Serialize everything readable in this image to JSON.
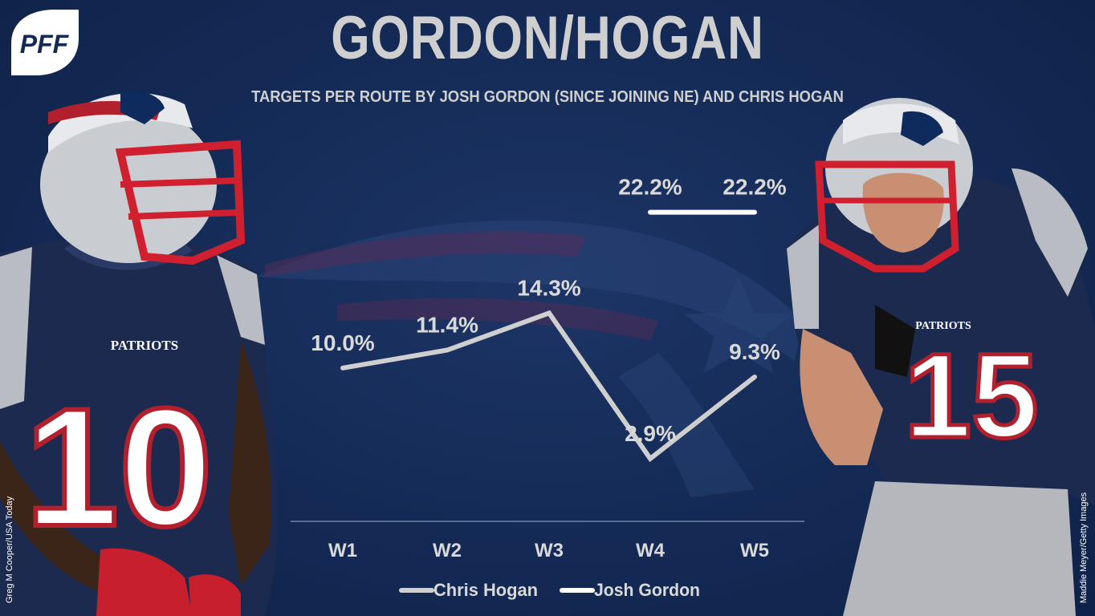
{
  "brand": {
    "logo_text": "PFF"
  },
  "title": "GORDON/HOGAN",
  "subtitle": "TARGETS PER ROUTE BY JOSH GORDON (SINCE JOINING NE) AND CHRIS HOGAN",
  "credits": {
    "left": "Greg M Cooper/USA Today",
    "right": "Maddie Meyer/Getty Images"
  },
  "players": {
    "left": {
      "jersey_number": "10",
      "team_text": "PATRIOTS"
    },
    "right": {
      "jersey_number": "15",
      "team_text": "PATRIOTS"
    }
  },
  "colors": {
    "hogan_line": "#cfcfcf",
    "gordon_line": "#ffffff",
    "background": "#142a55",
    "text": "#d9d9d9"
  },
  "chart_data": {
    "type": "line",
    "title": "GORDON/HOGAN",
    "subtitle": "TARGETS PER ROUTE BY JOSH GORDON (SINCE JOINING NE) AND CHRIS HOGAN",
    "categories": [
      "W1",
      "W2",
      "W3",
      "W4",
      "W5"
    ],
    "series": [
      {
        "name": "Chris Hogan",
        "values": [
          10.0,
          11.4,
          14.3,
          2.9,
          9.3
        ],
        "labels": [
          "10.0%",
          "11.4%",
          "14.3%",
          "2.9%",
          "9.3%"
        ]
      },
      {
        "name": "Josh Gordon",
        "values": [
          null,
          null,
          null,
          22.2,
          22.2
        ],
        "labels": [
          "",
          "",
          "",
          "22.2%",
          "22.2%"
        ]
      }
    ],
    "ylim": [
      0,
      25
    ],
    "grid": false,
    "legend": "bottom"
  }
}
